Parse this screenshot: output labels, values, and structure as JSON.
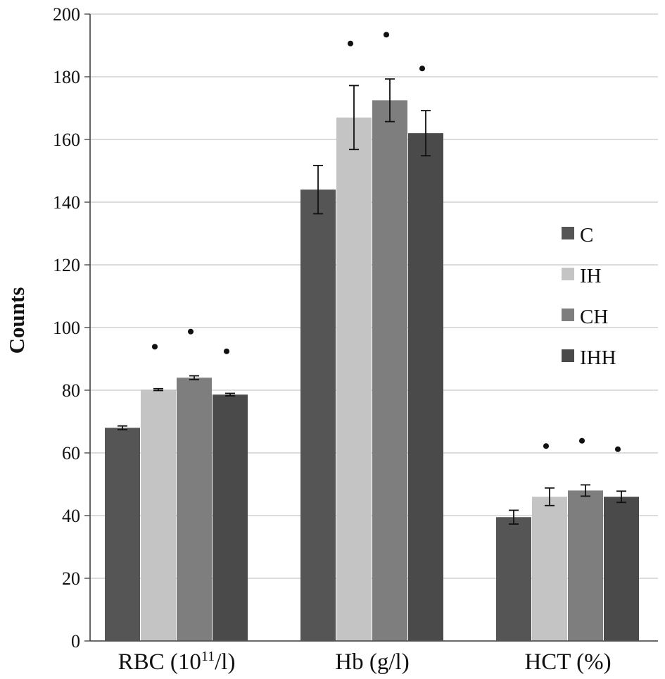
{
  "chart_data": {
    "type": "bar",
    "title": "",
    "xlabel": "",
    "ylabel": "Counts",
    "ylim": [
      0,
      200
    ],
    "yticks": [
      0,
      20,
      40,
      60,
      80,
      100,
      120,
      140,
      160,
      180,
      200
    ],
    "grid": true,
    "legend_position": "right",
    "categories": [
      {
        "label": "RBC (10",
        "sup": "11",
        "suffix": "/l)"
      },
      {
        "label": "Hb (g/l)",
        "sup": "",
        "suffix": ""
      },
      {
        "label": "HCT (%)",
        "sup": "",
        "suffix": ""
      }
    ],
    "series": [
      {
        "name": "C",
        "color": "#555555",
        "values": [
          68,
          144,
          39.5
        ],
        "errors": [
          0.6,
          7.7,
          2.2
        ],
        "significant": [
          false,
          false,
          false
        ]
      },
      {
        "name": "IH",
        "color": "#c4c4c4",
        "values": [
          80.2,
          167,
          46
        ],
        "errors": [
          0.3,
          10.2,
          2.8
        ],
        "significant": [
          true,
          true,
          true
        ]
      },
      {
        "name": "CH",
        "color": "#7e7e7e",
        "values": [
          84,
          172.5,
          48
        ],
        "errors": [
          0.6,
          6.8,
          1.8
        ],
        "significant": [
          true,
          true,
          true
        ]
      },
      {
        "name": "IHH",
        "color": "#4a4a4a",
        "values": [
          78.6,
          162,
          46
        ],
        "errors": [
          0.4,
          7.2,
          1.8
        ],
        "significant": [
          true,
          true,
          true
        ]
      }
    ],
    "significance_marker": "•"
  }
}
